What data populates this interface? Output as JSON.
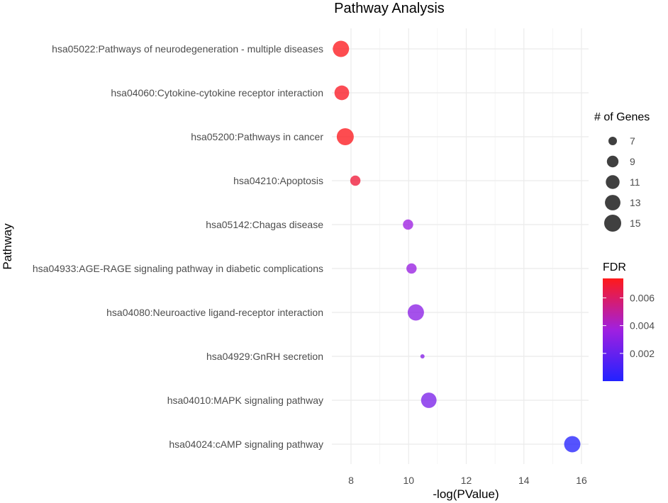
{
  "chart_data": {
    "type": "scatter",
    "title": "Pathway Analysis",
    "xlabel": "-log(PValue)",
    "ylabel": "Pathway",
    "xlim": [
      7.3,
      16.2
    ],
    "xticks": [
      8,
      10,
      12,
      14,
      16
    ],
    "grid": true,
    "points": [
      {
        "pathway": "hsa05022:Pathways of neurodegeneration - multiple diseases",
        "x": 7.65,
        "genes": 14,
        "fdr": 0.0073
      },
      {
        "pathway": "hsa04060:Cytokine-cytokine receptor interaction",
        "x": 7.68,
        "genes": 12,
        "fdr": 0.0072
      },
      {
        "pathway": "hsa05200:Pathways in cancer",
        "x": 7.8,
        "genes": 15,
        "fdr": 0.0073
      },
      {
        "pathway": "hsa04210:Apoptosis",
        "x": 8.15,
        "genes": 8,
        "fdr": 0.0068
      },
      {
        "pathway": "hsa05142:Chagas disease",
        "x": 9.98,
        "genes": 8,
        "fdr": 0.0036
      },
      {
        "pathway": "hsa04933:AGE-RAGE signaling pathway in diabetic complications",
        "x": 10.1,
        "genes": 8,
        "fdr": 0.0035
      },
      {
        "pathway": "hsa04080:Neuroactive ligand-receptor interaction",
        "x": 10.25,
        "genes": 14,
        "fdr": 0.0031
      },
      {
        "pathway": "hsa04929:GnRH secretion",
        "x": 10.48,
        "genes": 6,
        "fdr": 0.0029
      },
      {
        "pathway": "hsa04010:MAPK signaling pathway",
        "x": 10.7,
        "genes": 13,
        "fdr": 0.0026
      },
      {
        "pathway": "hsa04024:cAMP signaling pathway",
        "x": 15.68,
        "genes": 14,
        "fdr": 0.0001
      }
    ],
    "size_legend": {
      "title": "# of Genes",
      "values": [
        7,
        9,
        11,
        13,
        15
      ],
      "labels": [
        "7",
        "9",
        "11",
        "13",
        "15"
      ]
    },
    "color_legend": {
      "title": "FDR",
      "range": [
        0.0,
        0.0074
      ],
      "low_color": "#2222ff",
      "mid_color": "#a020e0",
      "high_color": "#ff1a1a",
      "ticks": [
        0.002,
        0.004,
        0.006
      ],
      "tick_labels": [
        "0.002",
        "0.004",
        "0.006"
      ]
    }
  }
}
